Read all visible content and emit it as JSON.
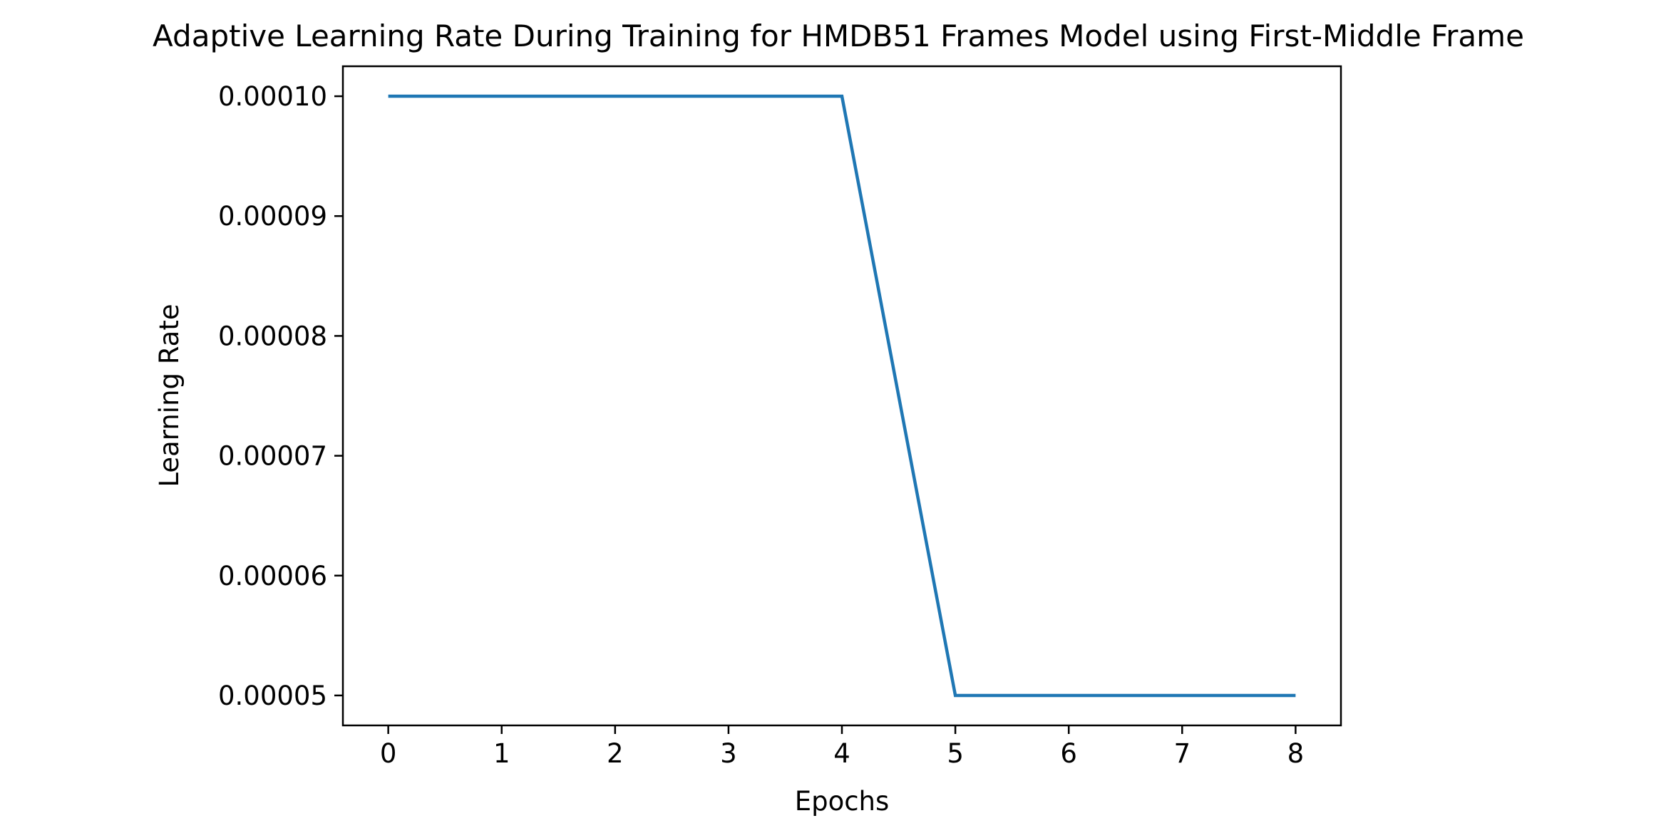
{
  "chart_data": {
    "type": "line",
    "title": "Adaptive Learning Rate During Training for HMDB51 Frames Model using First-Middle Frame",
    "xlabel": "Epochs",
    "ylabel": "Learning Rate",
    "x": [
      0,
      1,
      2,
      3,
      4,
      5,
      6,
      7,
      8
    ],
    "series": [
      {
        "values": [
          0.0001,
          0.0001,
          0.0001,
          0.0001,
          0.0001,
          5e-05,
          5e-05,
          5e-05,
          5e-05
        ]
      }
    ],
    "xlim": [
      -0.4,
      8.4
    ],
    "ylim": [
      4.75e-05,
      0.0001025
    ],
    "xticks": [
      0,
      1,
      2,
      3,
      4,
      5,
      6,
      7,
      8
    ],
    "xtick_labels": [
      "0",
      "1",
      "2",
      "3",
      "4",
      "5",
      "6",
      "7",
      "8"
    ],
    "yticks": [
      5e-05,
      6e-05,
      7e-05,
      8e-05,
      9e-05,
      0.0001
    ],
    "ytick_labels": [
      "0.00005",
      "0.00006",
      "0.00007",
      "0.00008",
      "0.00009",
      "0.00010"
    ],
    "grid": false,
    "legend": false,
    "line_color": "#1f77b4"
  }
}
